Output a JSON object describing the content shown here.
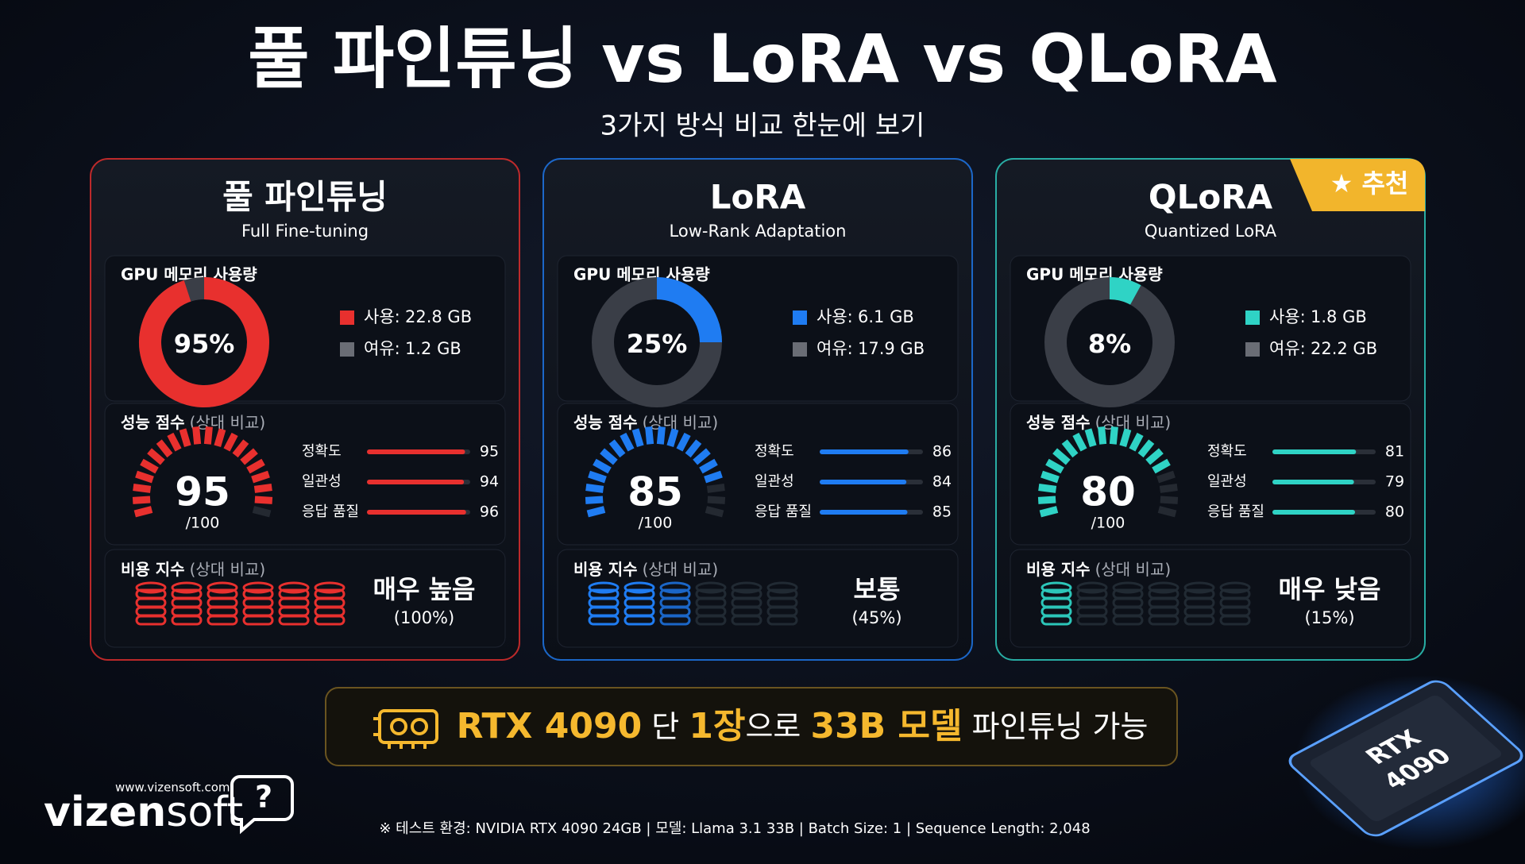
{
  "header": {
    "title": "풀 파인튜닝 vs LoRA vs QLoRA",
    "subtitle": "3가지 방식 비교 한눈에 보기"
  },
  "cards": [
    {
      "name": "풀 파인튜닝",
      "subname": "Full Fine-tuning",
      "color": "#e8302e",
      "memory": {
        "label": "GPU 메모리 사용량",
        "percent": {
          "value": 95,
          "label": "95%"
        },
        "used": {
          "label": "사용:",
          "value": "22.8 GB"
        },
        "free": {
          "label": "여유:",
          "value": "1.2 GB"
        }
      },
      "performance": {
        "label": "성능 점수",
        "note": "(상대 비교)",
        "score": 95,
        "max": {
          "value": 100,
          "label": "/100"
        },
        "metrics": [
          {
            "name": "정확도",
            "value": 95
          },
          {
            "name": "일관성",
            "value": 94
          },
          {
            "name": "응답 품질",
            "value": 96
          }
        ]
      },
      "cost": {
        "label": "비용 지수",
        "note": "(상대 비교)",
        "level": "매우 높음",
        "percent": {
          "value": 100,
          "label": "(100%)"
        }
      }
    },
    {
      "name": "LoRA",
      "subname": "Low-Rank Adaptation",
      "color": "#1f7cf2",
      "memory": {
        "label": "GPU 메모리 사용량",
        "percent": {
          "value": 25,
          "label": "25%"
        },
        "used": {
          "label": "사용:",
          "value": "6.1 GB"
        },
        "free": {
          "label": "여유:",
          "value": "17.9 GB"
        }
      },
      "performance": {
        "label": "성능 점수",
        "note": "(상대 비교)",
        "score": 85,
        "max": {
          "value": 100,
          "label": "/100"
        },
        "metrics": [
          {
            "name": "정확도",
            "value": 86
          },
          {
            "name": "일관성",
            "value": 84
          },
          {
            "name": "응답 품질",
            "value": 85
          }
        ]
      },
      "cost": {
        "label": "비용 지수",
        "note": "(상대 비교)",
        "level": "보통",
        "percent": {
          "value": 45,
          "label": "(45%)"
        }
      }
    },
    {
      "name": "QLoRA",
      "subname": "Quantized LoRA",
      "color": "#2fd3c5",
      "badge": "★ 추천",
      "memory": {
        "label": "GPU 메모리 사용량",
        "percent": {
          "value": 8,
          "label": "8%"
        },
        "used": {
          "label": "사용:",
          "value": "1.8 GB"
        },
        "free": {
          "label": "여유:",
          "value": "22.2 GB"
        }
      },
      "performance": {
        "label": "성능 점수",
        "note": "(상대 비교)",
        "score": 80,
        "max": {
          "value": 100,
          "label": "/100"
        },
        "metrics": [
          {
            "name": "정확도",
            "value": 81
          },
          {
            "name": "일관성",
            "value": 79
          },
          {
            "name": "응답 품질",
            "value": 80
          }
        ]
      },
      "cost": {
        "label": "비용 지수",
        "note": "(상대 비교)",
        "level": "매우 낮음",
        "percent": {
          "value": 15,
          "label": "(15%)"
        }
      }
    }
  ],
  "banner": {
    "parts": [
      "RTX 4090",
      " 단 ",
      "1장",
      "으로 ",
      "33B 모델",
      " 파인튜닝 가능"
    ]
  },
  "chip": {
    "line1": "RTX",
    "line2": "4090"
  },
  "logo": {
    "url": "www.vizensoft.com",
    "brand_a": "vizen",
    "brand_b": "soft",
    "mark": "?"
  },
  "footnote": "※ 테스트 환경: NVIDIA RTX 4090 24GB  |  모델: Llama 3.1 33B  |  Batch Size: 1  |  Sequence Length: 2,048"
}
